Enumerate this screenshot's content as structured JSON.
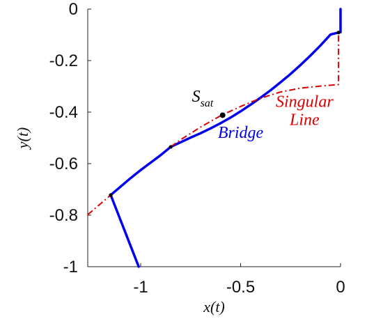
{
  "chart_data": {
    "type": "line",
    "xlabel": "x(t)",
    "ylabel": "y(t)",
    "xlim": [
      -1.265,
      0.0
    ],
    "ylim": [
      -1.0,
      0.0
    ],
    "xticks": [
      {
        "value": -1,
        "label": "-1"
      },
      {
        "value": -0.5,
        "label": "-0.5"
      },
      {
        "value": 0,
        "label": "0"
      }
    ],
    "yticks": [
      {
        "value": 0,
        "label": "0"
      },
      {
        "value": -0.2,
        "label": "-0.2"
      },
      {
        "value": -0.4,
        "label": "-0.4"
      },
      {
        "value": -0.6,
        "label": "-0.6"
      },
      {
        "value": -0.8,
        "label": "-0.8"
      },
      {
        "value": -1,
        "label": "-1"
      }
    ],
    "grid": false,
    "series": [
      {
        "color": "#0000ee",
        "style": "solid",
        "points": [
          [
            -1.15,
            -0.722
          ],
          [
            -1.1,
            -0.689
          ],
          [
            -1.05,
            -0.656
          ],
          [
            -1.0,
            -0.625
          ],
          [
            -0.95,
            -0.596
          ],
          [
            -0.9,
            -0.567
          ],
          [
            -0.85,
            -0.535
          ],
          [
            -0.8,
            -0.517
          ],
          [
            -0.75,
            -0.499
          ],
          [
            -0.7,
            -0.482
          ],
          [
            -0.65,
            -0.463
          ],
          [
            -0.6,
            -0.443
          ],
          [
            -0.55,
            -0.421
          ],
          [
            -0.5,
            -0.397
          ],
          [
            -0.45,
            -0.371
          ],
          [
            -0.4,
            -0.344
          ],
          [
            -0.35,
            -0.315
          ],
          [
            -0.3,
            -0.284
          ],
          [
            -0.25,
            -0.252
          ],
          [
            -0.2,
            -0.217
          ],
          [
            -0.15,
            -0.18
          ],
          [
            -0.1,
            -0.141
          ],
          [
            -0.05,
            -0.099
          ],
          [
            -0.01,
            -0.091
          ]
        ]
      },
      {
        "color": "#0000ee",
        "style": "solid",
        "points": [
          [
            -1.15,
            -0.722
          ],
          [
            -1.01,
            -1.0
          ]
        ]
      },
      {
        "color": "#0000ee",
        "style": "solid",
        "points": [
          [
            0.0,
            -0.09
          ],
          [
            0.0,
            0.0
          ]
        ]
      },
      {
        "color": "#dd0000",
        "style": "dashdot",
        "points": [
          [
            -1.265,
            -0.798
          ],
          [
            -1.15,
            -0.722
          ]
        ]
      },
      {
        "color": "#dd0000",
        "style": "dashdot",
        "points": [
          [
            -0.85,
            -0.535
          ],
          [
            -0.8,
            -0.507
          ],
          [
            -0.7,
            -0.458
          ],
          [
            -0.6,
            -0.414
          ],
          [
            -0.5,
            -0.378
          ],
          [
            -0.4,
            -0.346
          ],
          [
            -0.3,
            -0.322
          ],
          [
            -0.2,
            -0.307
          ],
          [
            -0.1,
            -0.299
          ],
          [
            -0.01,
            -0.293
          ],
          [
            -0.01,
            -0.091
          ]
        ]
      }
    ],
    "markers": [
      [
        -1.15,
        -0.722
      ],
      [
        -0.85,
        -0.535
      ],
      [
        -0.59,
        -0.412
      ],
      [
        -0.01,
        -0.091
      ]
    ],
    "annotations": [
      {
        "text": "S",
        "subscript": "sat",
        "x": -0.69,
        "y": -0.36,
        "color": "#000000"
      },
      {
        "text": "Bridge",
        "x": -0.5,
        "y": -0.5,
        "color": "#0000ee"
      },
      {
        "text": "Singular",
        "x": -0.18,
        "y": -0.38,
        "color": "#dd0000"
      },
      {
        "text": "Line",
        "x": -0.18,
        "y": -0.45,
        "color": "#dd0000"
      }
    ]
  }
}
